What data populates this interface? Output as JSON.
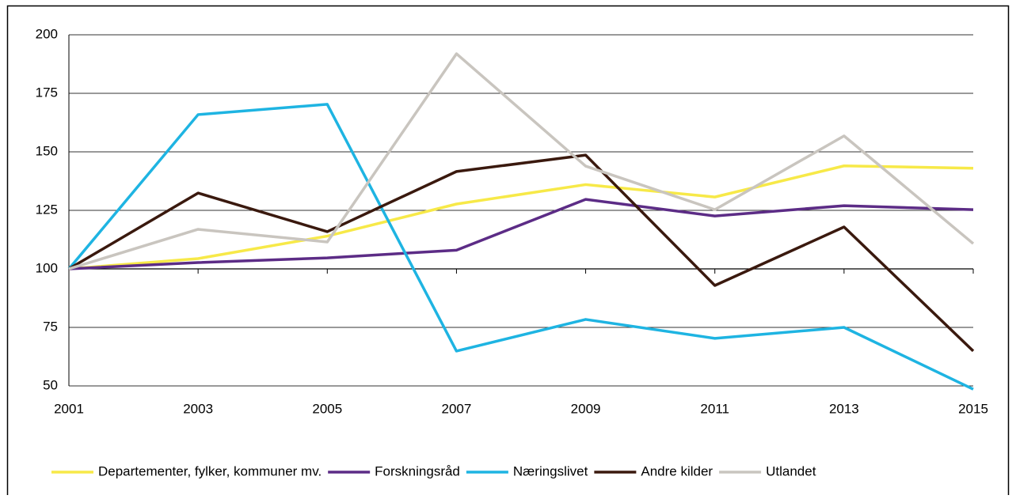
{
  "chart_data": {
    "type": "line",
    "x": [
      2001,
      2003,
      2005,
      2007,
      2009,
      2011,
      2013,
      2015
    ],
    "xlim": [
      2001,
      2015
    ],
    "xticks": [
      2001,
      2003,
      2005,
      2007,
      2009,
      2011,
      2013,
      2015
    ],
    "ylim": [
      50,
      200
    ],
    "yticks": [
      50,
      75,
      100,
      125,
      150,
      175,
      200
    ],
    "grid": true,
    "x_axis_crosses_at": 100,
    "legend": "bottom",
    "series": [
      {
        "name": "Departementer, fylker, kommuner mv.",
        "color": "#f7e948",
        "values": [
          100,
          104.4,
          114,
          127.7,
          136,
          130.7,
          144,
          143
        ]
      },
      {
        "name": "Forskningsråd",
        "color": "#5c2c86",
        "values": [
          100,
          102.7,
          104.7,
          108,
          129.7,
          122.6,
          127,
          125.3
        ]
      },
      {
        "name": "Næringslivet",
        "color": "#1eb4e2",
        "values": [
          100,
          165.9,
          170.3,
          64.9,
          78.4,
          70.3,
          75,
          48.6
        ]
      },
      {
        "name": "Andre kilder",
        "color": "#3a190e",
        "values": [
          100,
          132.4,
          115.9,
          141.6,
          148.6,
          92.9,
          117.9,
          64.9
        ]
      },
      {
        "name": "Utlandet",
        "color": "#c9c5bf",
        "values": [
          100,
          116.9,
          111.5,
          191.9,
          143.9,
          125.3,
          156.8,
          110.8
        ]
      }
    ]
  }
}
